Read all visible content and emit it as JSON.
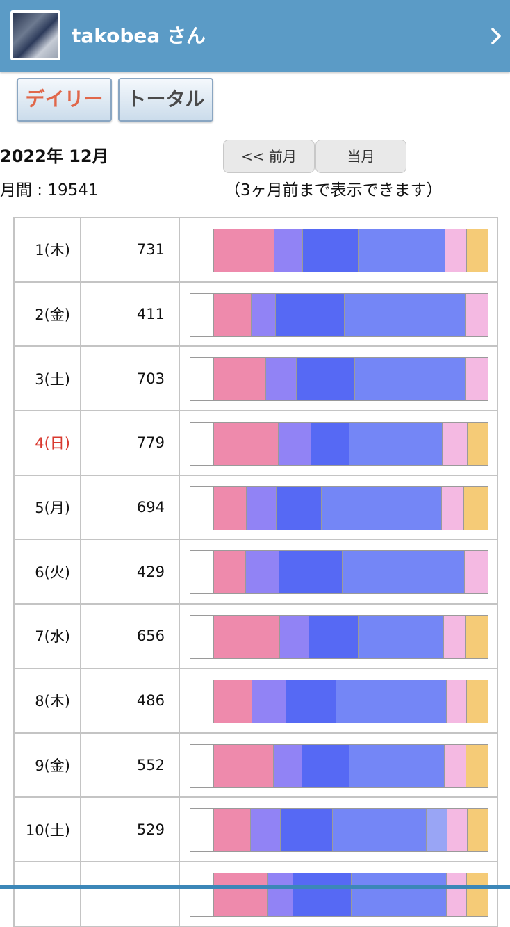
{
  "header": {
    "username": "takobea さん",
    "chevron_icon": "chevron-right-icon"
  },
  "tabs": {
    "daily": "デイリー",
    "total": "トータル"
  },
  "summary": {
    "month": "2022年 12月",
    "monthly_total": "月間 : 19541"
  },
  "nav": {
    "prev": "<< 前月",
    "current": "当月",
    "note": "（3ヶ月前まで表示できます）"
  },
  "colors": {
    "white": "#ffffff",
    "pink": "#ee8aac",
    "violet": "#9183f5",
    "blue": "#5669f4",
    "periwinkle": "#7486f6",
    "lavender": "#99a5f5",
    "light_pink": "#f4b9e2",
    "yellow": "#f5cb77",
    "sunday": "#d9392f",
    "header": "#5b9bc6"
  },
  "rows": [
    {
      "day": "1(木)",
      "count": "731",
      "sunday": false,
      "segments": [
        {
          "c": "white",
          "w": 34
        },
        {
          "c": "pink",
          "w": 88
        },
        {
          "c": "violet",
          "w": 41
        },
        {
          "c": "blue",
          "w": 80
        },
        {
          "c": "periwinkle",
          "w": 126
        },
        {
          "c": "light_pink",
          "w": 31
        },
        {
          "c": "yellow",
          "w": 30
        }
      ]
    },
    {
      "day": "2(金)",
      "count": "411",
      "sunday": false,
      "segments": [
        {
          "c": "white",
          "w": 34
        },
        {
          "c": "pink",
          "w": 54
        },
        {
          "c": "violet",
          "w": 36
        },
        {
          "c": "blue",
          "w": 99
        },
        {
          "c": "periwinkle",
          "w": 175
        },
        {
          "c": "light_pink",
          "w": 32
        }
      ]
    },
    {
      "day": "3(土)",
      "count": "703",
      "sunday": false,
      "segments": [
        {
          "c": "white",
          "w": 34
        },
        {
          "c": "pink",
          "w": 75
        },
        {
          "c": "violet",
          "w": 45
        },
        {
          "c": "blue",
          "w": 84
        },
        {
          "c": "periwinkle",
          "w": 160
        },
        {
          "c": "light_pink",
          "w": 32
        }
      ]
    },
    {
      "day": "4(日)",
      "count": "779",
      "sunday": true,
      "segments": [
        {
          "c": "white",
          "w": 34
        },
        {
          "c": "pink",
          "w": 94
        },
        {
          "c": "violet",
          "w": 47
        },
        {
          "c": "blue",
          "w": 55
        },
        {
          "c": "periwinkle",
          "w": 135
        },
        {
          "c": "light_pink",
          "w": 36
        },
        {
          "c": "yellow",
          "w": 29
        }
      ]
    },
    {
      "day": "5(月)",
      "count": "694",
      "sunday": false,
      "segments": [
        {
          "c": "white",
          "w": 34
        },
        {
          "c": "pink",
          "w": 47
        },
        {
          "c": "violet",
          "w": 44
        },
        {
          "c": "blue",
          "w": 65
        },
        {
          "c": "periwinkle",
          "w": 174
        },
        {
          "c": "light_pink",
          "w": 32
        },
        {
          "c": "yellow",
          "w": 34
        }
      ]
    },
    {
      "day": "6(火)",
      "count": "429",
      "sunday": false,
      "segments": [
        {
          "c": "white",
          "w": 34
        },
        {
          "c": "pink",
          "w": 46
        },
        {
          "c": "violet",
          "w": 49
        },
        {
          "c": "blue",
          "w": 91
        },
        {
          "c": "periwinkle",
          "w": 177
        },
        {
          "c": "light_pink",
          "w": 33
        }
      ]
    },
    {
      "day": "7(水)",
      "count": "656",
      "sunday": false,
      "segments": [
        {
          "c": "white",
          "w": 34
        },
        {
          "c": "pink",
          "w": 96
        },
        {
          "c": "violet",
          "w": 42
        },
        {
          "c": "blue",
          "w": 71
        },
        {
          "c": "periwinkle",
          "w": 124
        },
        {
          "c": "light_pink",
          "w": 31
        },
        {
          "c": "yellow",
          "w": 32
        }
      ]
    },
    {
      "day": "8(木)",
      "count": "486",
      "sunday": false,
      "segments": [
        {
          "c": "white",
          "w": 34
        },
        {
          "c": "pink",
          "w": 55
        },
        {
          "c": "violet",
          "w": 50
        },
        {
          "c": "blue",
          "w": 72
        },
        {
          "c": "periwinkle",
          "w": 160
        },
        {
          "c": "light_pink",
          "w": 29
        },
        {
          "c": "yellow",
          "w": 30
        }
      ]
    },
    {
      "day": "9(金)",
      "count": "552",
      "sunday": false,
      "segments": [
        {
          "c": "white",
          "w": 34
        },
        {
          "c": "pink",
          "w": 87
        },
        {
          "c": "violet",
          "w": 41
        },
        {
          "c": "blue",
          "w": 68
        },
        {
          "c": "periwinkle",
          "w": 138
        },
        {
          "c": "light_pink",
          "w": 31
        },
        {
          "c": "yellow",
          "w": 31
        }
      ]
    },
    {
      "day": "10(土)",
      "count": "529",
      "sunday": false,
      "segments": [
        {
          "c": "white",
          "w": 34
        },
        {
          "c": "pink",
          "w": 53
        },
        {
          "c": "violet",
          "w": 44
        },
        {
          "c": "blue",
          "w": 75
        },
        {
          "c": "periwinkle",
          "w": 136
        },
        {
          "c": "lavender",
          "w": 30
        },
        {
          "c": "light_pink",
          "w": 29
        },
        {
          "c": "yellow",
          "w": 29
        }
      ]
    },
    {
      "day": "",
      "count": "",
      "sunday": false,
      "segments": [
        {
          "c": "white",
          "w": 34
        },
        {
          "c": "pink",
          "w": 78
        },
        {
          "c": "violet",
          "w": 37
        },
        {
          "c": "blue",
          "w": 84
        },
        {
          "c": "periwinkle",
          "w": 138
        },
        {
          "c": "light_pink",
          "w": 29
        },
        {
          "c": "yellow",
          "w": 30
        }
      ]
    }
  ]
}
